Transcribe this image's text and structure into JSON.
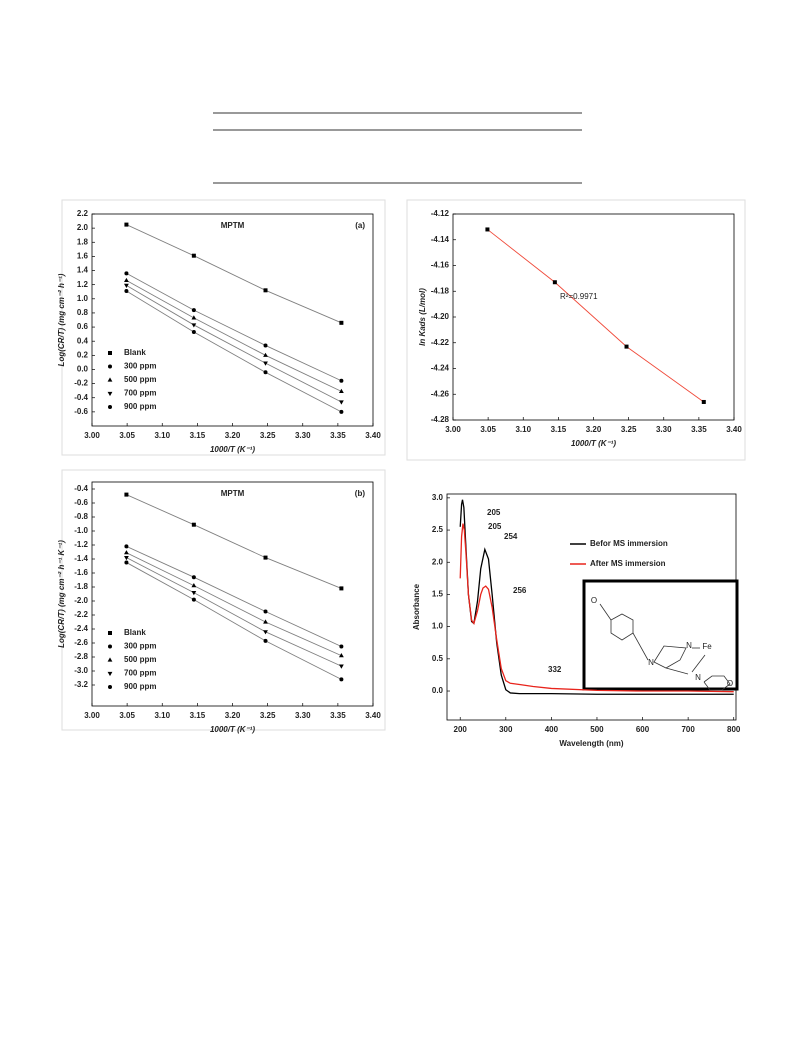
{
  "chart_data": [
    {
      "type": "scatter",
      "title": "MPTM",
      "panel_label": "(a)",
      "x_label": "1000/T (K⁻¹)",
      "y_label": "Log(CR/T) (mg cm⁻² h⁻¹)",
      "x": [
        3.049,
        3.145,
        3.247,
        3.355
      ],
      "series": [
        {
          "name": "Blank",
          "color": "#000000",
          "line_color": "#808080",
          "marker": "square",
          "values": [
            2.05,
            1.61,
            1.12,
            0.66
          ]
        },
        {
          "name": "300 ppm",
          "color": "#000000",
          "line_color": "#808080",
          "marker": "circle",
          "values": [
            1.36,
            0.84,
            0.34,
            -0.16
          ]
        },
        {
          "name": "500 ppm",
          "color": "#000000",
          "line_color": "#808080",
          "marker": "triangle-up",
          "values": [
            1.26,
            0.73,
            0.2,
            -0.31
          ]
        },
        {
          "name": "700 ppm",
          "color": "#000000",
          "line_color": "#808080",
          "marker": "triangle-down",
          "values": [
            1.19,
            0.63,
            0.09,
            -0.46
          ]
        },
        {
          "name": "900 ppm",
          "color": "#000000",
          "line_color": "#808080",
          "marker": "circle",
          "values": [
            1.11,
            0.53,
            -0.04,
            -0.6
          ]
        }
      ],
      "xlim": [
        3.0,
        3.4
      ],
      "xticks": [
        {
          "value": 3,
          "label": "3.00"
        },
        3.05,
        {
          "value": 3.1,
          "label": "3.10"
        },
        3.15,
        {
          "value": 3.2,
          "label": "3.20"
        },
        3.25,
        {
          "value": 3.3,
          "label": "3.30"
        },
        3.35,
        {
          "value": 3.4,
          "label": "3.40"
        }
      ],
      "ylim": [
        -0.8,
        2.2
      ],
      "yticks": [
        2.2,
        {
          "value": 2,
          "label": "2.0"
        },
        1.8,
        1.6,
        1.4,
        1.2,
        {
          "value": 1,
          "label": "1.0"
        },
        0.8,
        0.6,
        0.4,
        0.2,
        {
          "value": 0,
          "label": "0.0"
        },
        -0.2,
        -0.4,
        -0.6
      ],
      "legend": "lower-left"
    },
    {
      "type": "scatter",
      "annotations": [
        {
          "text": "R²=0.9971",
          "color": "#222222"
        }
      ],
      "x_label": "1000/T (K⁻¹)",
      "y_label": "ln Kads (L/mol)",
      "x": [
        3.049,
        3.145,
        3.247,
        3.357
      ],
      "series": [
        {
          "color": "#000000",
          "line_color": "#f04a3a",
          "marker": "square",
          "values": [
            -4.132,
            -4.173,
            -4.223,
            -4.266
          ]
        }
      ],
      "xlim": [
        3.0,
        3.4
      ],
      "xticks": [
        {
          "value": 3,
          "label": "3.00"
        },
        3.05,
        {
          "value": 3.1,
          "label": "3.10"
        },
        3.15,
        {
          "value": 3.2,
          "label": "3.20"
        },
        3.25,
        {
          "value": 3.3,
          "label": "3.30"
        },
        3.35,
        {
          "value": 3.4,
          "label": "3.40"
        }
      ],
      "ylim": [
        -4.28,
        -4.12
      ],
      "yticks": [
        -4.12,
        -4.14,
        -4.16,
        -4.18,
        {
          "value": -4.2,
          "label": "-4.20"
        },
        -4.22,
        -4.24,
        -4.26,
        -4.28
      ]
    },
    {
      "type": "scatter",
      "title": "MPTM",
      "panel_label": "(b)",
      "x_label": "1000/T (K⁻¹)",
      "y_label": "Log(CR/T) (mg cm⁻² h⁻¹ K⁻¹)",
      "x": [
        3.049,
        3.145,
        3.247,
        3.355
      ],
      "series": [
        {
          "name": "Blank",
          "color": "#000000",
          "line_color": "#808080",
          "marker": "square",
          "values": [
            -0.48,
            -0.91,
            -1.38,
            -1.82
          ]
        },
        {
          "name": "300 ppm",
          "color": "#000000",
          "line_color": "#808080",
          "marker": "circle",
          "values": [
            -1.22,
            -1.66,
            -2.15,
            -2.65
          ]
        },
        {
          "name": "500 ppm",
          "color": "#000000",
          "line_color": "#808080",
          "marker": "triangle-up",
          "values": [
            -1.31,
            -1.78,
            -2.3,
            -2.78
          ]
        },
        {
          "name": "700 ppm",
          "color": "#000000",
          "line_color": "#808080",
          "marker": "triangle-down",
          "values": [
            -1.38,
            -1.88,
            -2.44,
            -2.93
          ]
        },
        {
          "name": "900 ppm",
          "color": "#000000",
          "line_color": "#808080",
          "marker": "circle",
          "values": [
            -1.45,
            -1.98,
            -2.57,
            -3.12
          ]
        }
      ],
      "xlim": [
        3.0,
        3.4
      ],
      "xticks": [
        {
          "value": 3,
          "label": "3.00"
        },
        3.05,
        {
          "value": 3.1,
          "label": "3.10"
        },
        3.15,
        {
          "value": 3.2,
          "label": "3.20"
        },
        3.25,
        {
          "value": 3.3,
          "label": "3.30"
        },
        3.35,
        {
          "value": 3.4,
          "label": "3.40"
        }
      ],
      "ylim": [
        -3.5,
        -0.3
      ],
      "yticks": [
        -0.4,
        -0.6,
        -0.8,
        {
          "value": -1,
          "label": "-1.0"
        },
        -1.2,
        -1.4,
        -1.6,
        -1.8,
        {
          "value": -2,
          "label": "-2.0"
        },
        -2.2,
        -2.4,
        -2.6,
        -2.8,
        {
          "value": -3,
          "label": "-3.0"
        },
        -3.2
      ],
      "legend": "lower-left"
    },
    {
      "type": "line",
      "x_label": "Wavelength (nm)",
      "y_label": "Absorbance",
      "series": [
        {
          "name": "Befor MS immersion",
          "color": "#000000",
          "x": [
            200,
            203,
            205,
            208,
            212,
            218,
            225,
            230,
            238,
            245,
            254,
            262,
            270,
            280,
            290,
            300,
            310,
            330,
            400,
            500,
            600,
            700,
            800
          ],
          "values": [
            2.55,
            2.9,
            2.97,
            2.85,
            2.3,
            1.5,
            1.08,
            1.05,
            1.4,
            1.9,
            2.2,
            2.05,
            1.5,
            0.75,
            0.25,
            0.02,
            -0.03,
            -0.04,
            -0.04,
            -0.05,
            -0.05,
            -0.05,
            -0.05
          ]
        },
        {
          "name": "After MS immersion",
          "color": "#e8241c",
          "x": [
            200,
            203,
            206,
            209,
            213,
            218,
            225,
            230,
            238,
            245,
            250,
            256,
            262,
            270,
            280,
            290,
            300,
            310,
            332,
            360,
            400,
            500,
            600,
            700,
            800
          ],
          "values": [
            1.75,
            2.4,
            2.6,
            2.5,
            2.1,
            1.5,
            1.1,
            1.05,
            1.25,
            1.5,
            1.6,
            1.63,
            1.58,
            1.3,
            0.8,
            0.35,
            0.16,
            0.12,
            0.1,
            0.07,
            0.04,
            0.01,
            0.0,
            0.0,
            -0.01
          ]
        }
      ],
      "annotations": [
        {
          "text": "205",
          "color": "#000000"
        },
        {
          "text": "205",
          "color": "#e8241c"
        },
        {
          "text": "254",
          "color": "#000000"
        },
        {
          "text": "256",
          "color": "#e8241c"
        },
        {
          "text": "332",
          "color": "#e8241c"
        }
      ],
      "inset_atoms": [
        "O",
        "N",
        "N",
        "Fe",
        "N",
        "O"
      ],
      "xlim": [
        171,
        805
      ],
      "xticks": [
        200,
        300,
        400,
        500,
        600,
        700,
        800
      ],
      "ylim": [
        -0.45,
        3.06
      ],
      "yticks": [
        {
          "value": 0,
          "label": "0.0"
        },
        0.5,
        {
          "value": 1,
          "label": "1.0"
        },
        1.5,
        {
          "value": 2,
          "label": "2.0"
        },
        2.5,
        {
          "value": 3,
          "label": "3.0"
        }
      ],
      "legend": "upper-right"
    }
  ]
}
